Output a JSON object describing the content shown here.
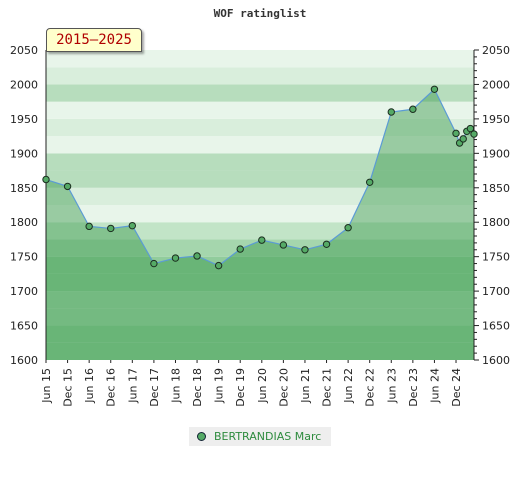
{
  "chart_data": {
    "type": "area",
    "title": "WOF ratinglist",
    "period_label": "2015–2025",
    "x_tick_labels": [
      "Jun 15",
      "Dec 15",
      "Jun 16",
      "Dec 16",
      "Jun 17",
      "Dec 17",
      "Jun 18",
      "Dec 18",
      "Jun 19",
      "Dec 19",
      "Jun 20",
      "Dec 20",
      "Jun 21",
      "Dec 21",
      "Jun 22",
      "Dec 22",
      "Jun 23",
      "Dec 23",
      "Jun 24",
      "Dec 24"
    ],
    "y_ticks": [
      1600,
      1650,
      1700,
      1750,
      1800,
      1850,
      1900,
      1950,
      2000,
      2050
    ],
    "ylim": [
      1600,
      2050
    ],
    "grid": true,
    "legend_position": "bottom",
    "series": [
      {
        "name": "BERTRANDIAS Marc",
        "color": "#55aa66",
        "line_color": "#5b9bd5",
        "points": [
          {
            "x": "Jun 15",
            "y": 1862
          },
          {
            "x": "Dec 15",
            "y": 1852
          },
          {
            "x": "Jun 16",
            "y": 1794
          },
          {
            "x": "Dec 16",
            "y": 1791
          },
          {
            "x": "Jun 17",
            "y": 1795
          },
          {
            "x": "Dec 17",
            "y": 1740
          },
          {
            "x": "Jun 18",
            "y": 1748
          },
          {
            "x": "Dec 18",
            "y": 1751
          },
          {
            "x": "Jun 19",
            "y": 1737
          },
          {
            "x": "Dec 19",
            "y": 1761
          },
          {
            "x": "Jun 20",
            "y": 1774
          },
          {
            "x": "Dec 20",
            "y": 1767
          },
          {
            "x": "Jun 21",
            "y": 1760
          },
          {
            "x": "Dec 21",
            "y": 1768
          },
          {
            "x": "Jun 22",
            "y": 1792
          },
          {
            "x": "Dec 22",
            "y": 1858
          },
          {
            "x": "Jun 23",
            "y": 1960
          },
          {
            "x": "Dec 23",
            "y": 1964
          },
          {
            "x": "Jun 24",
            "y": 1993
          },
          {
            "x": "Dec 24",
            "y": 1929
          },
          {
            "x": "Jan 25",
            "y": 1915
          },
          {
            "x": "Feb 25",
            "y": 1921
          },
          {
            "x": "Mar 25",
            "y": 1932
          },
          {
            "x": "Apr 25",
            "y": 1936
          },
          {
            "x": "May 25",
            "y": 1928
          }
        ]
      }
    ]
  }
}
